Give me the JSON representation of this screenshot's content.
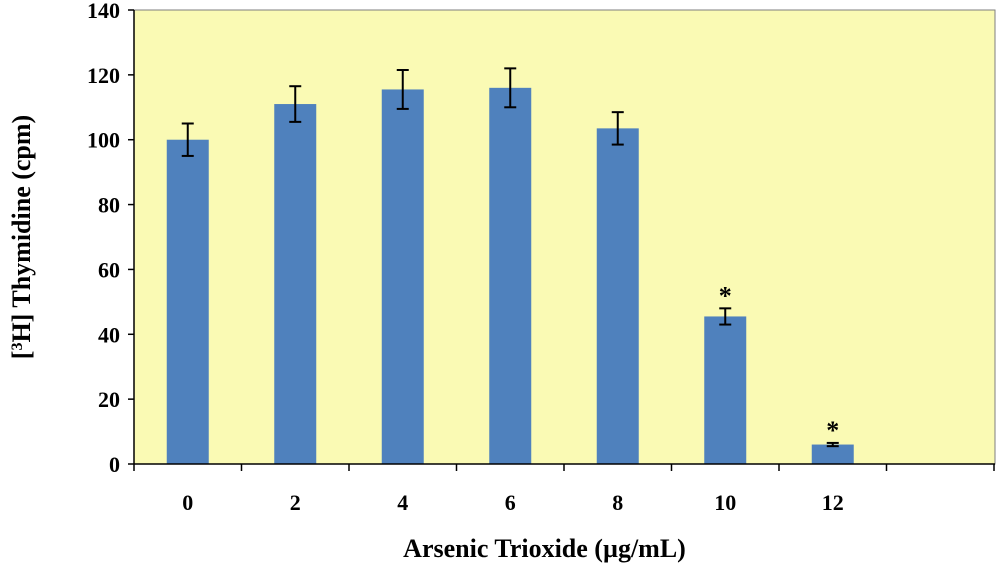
{
  "chart_data": {
    "type": "bar",
    "xlabel": "Arsenic Trioxide (µg/mL)",
    "ylabel": {
      "prefix": "[",
      "superscript": "3",
      "suffix": "H] Thymidine (cpm)"
    },
    "categories": [
      "0",
      "2",
      "4",
      "6",
      "8",
      "10",
      "12"
    ],
    "values": [
      100,
      111,
      115.5,
      116,
      103.5,
      45.5,
      6
    ],
    "error": [
      5,
      5.5,
      6,
      6,
      5,
      2.5,
      0.5
    ],
    "significance": [
      "",
      "",
      "",
      "",
      "",
      "*",
      "*"
    ],
    "ylim": [
      0,
      140
    ],
    "yticks": [
      "0",
      "20",
      "40",
      "60",
      "80",
      "100",
      "120",
      "140"
    ],
    "grid": false,
    "legend": "none",
    "colors": {
      "bar": "#4f81bd",
      "plot_background": "#fafab4",
      "axis": "#000000"
    }
  }
}
